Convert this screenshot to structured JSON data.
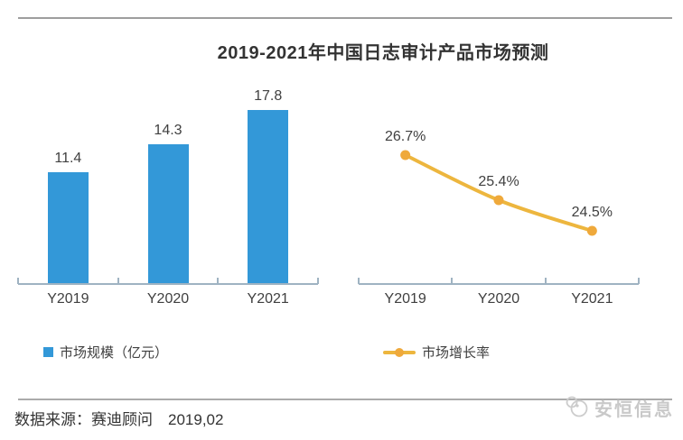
{
  "title": "2019-2021年中国日志审计产品市场预测",
  "chart_data": [
    {
      "type": "bar",
      "categories": [
        "Y2019",
        "Y2020",
        "Y2021"
      ],
      "values": [
        11.4,
        14.3,
        17.8
      ],
      "data_labels": [
        "11.4",
        "14.3",
        "17.8"
      ],
      "series_name": "市场规模（亿元）",
      "color": "#3398D8",
      "ylim": [
        0,
        20
      ],
      "grid": false,
      "legend_position": "bottom-left"
    },
    {
      "type": "line",
      "categories": [
        "Y2019",
        "Y2020",
        "Y2021"
      ],
      "values": [
        26.7,
        25.4,
        24.5
      ],
      "data_labels": [
        "26.7%",
        "25.4%",
        "24.5%"
      ],
      "series_name": "市场增长率",
      "color": "#EDB63E",
      "marker_color": "#EFA93B",
      "ylim": [
        23,
        28
      ],
      "grid": false,
      "legend_position": "bottom-left"
    }
  ],
  "colors": {
    "axis": "#9FB3C2",
    "text": "#404040",
    "bar_blue": "#3398D8",
    "line_gold": "#EDB63E"
  },
  "footer": {
    "source": "数据来源：赛迪顾问　2019,02",
    "logo_text": "安恒信息"
  }
}
